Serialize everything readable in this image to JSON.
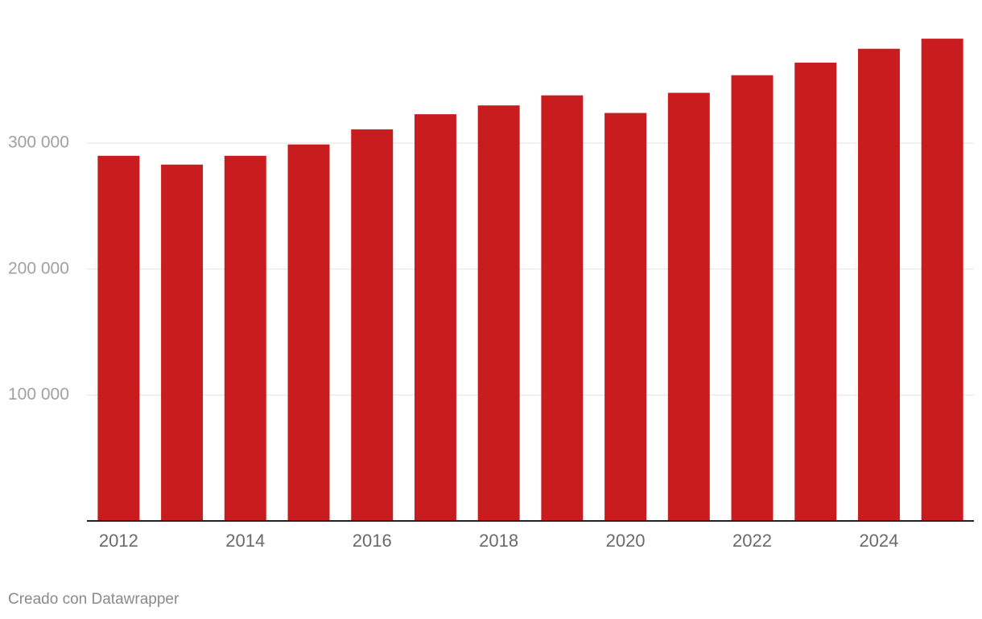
{
  "chart_data": {
    "type": "bar",
    "categories": [
      "2012",
      null,
      "2014",
      null,
      "2016",
      null,
      "2018",
      null,
      "2020",
      null,
      "2022",
      null,
      "2024",
      null
    ],
    "values": [
      290000,
      283000,
      290000,
      299000,
      311000,
      323000,
      330000,
      338000,
      324000,
      340000,
      354000,
      364000,
      375000,
      383000
    ],
    "color": "#c81c1e",
    "ylim": [
      0,
      385000
    ],
    "yticks": [
      {
        "value": 100000,
        "label": "100 000"
      },
      {
        "value": 200000,
        "label": "200 000"
      },
      {
        "value": 300000,
        "label": "300 000"
      }
    ],
    "grid": true,
    "footer": "Creado con Datawrapper"
  }
}
